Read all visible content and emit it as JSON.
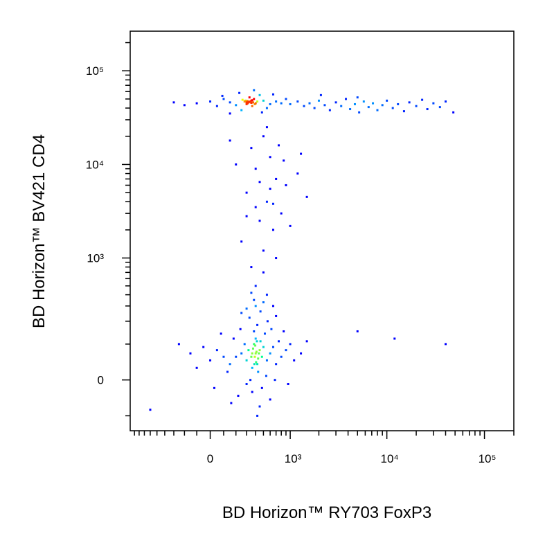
{
  "chart_data": {
    "type": "density",
    "x_label": "BD Horizon™ RY703 FoxP3",
    "y_label": "BD Horizon™ BV421 CD4",
    "xscale": "biexponential",
    "yscale": "biexponential",
    "xlim": [
      -1000,
      200000
    ],
    "ylim": [
      -160,
      265000
    ],
    "xticks": [
      0,
      {
        "value": 1000,
        "label": "10³"
      },
      {
        "value": 10000,
        "label": "10⁴"
      },
      {
        "value": 100000,
        "label": "10⁵"
      }
    ],
    "yticks": [
      0,
      {
        "value": 1000,
        "label": "10³"
      },
      {
        "value": 10000,
        "label": "10⁴"
      },
      {
        "value": 100000,
        "label": "10⁵"
      }
    ],
    "xminorticks": [
      -900,
      -800,
      -700,
      -600,
      -500,
      -400,
      -300,
      -200,
      -100,
      100,
      200,
      300,
      400,
      500,
      600,
      700,
      800,
      900,
      2000,
      3000,
      4000,
      5000,
      6000,
      7000,
      8000,
      9000,
      20000,
      30000,
      40000,
      50000,
      60000,
      70000,
      80000,
      90000,
      200000
    ],
    "yminorticks": [
      -100,
      100,
      200,
      300,
      400,
      500,
      600,
      700,
      800,
      900,
      2000,
      3000,
      4000,
      5000,
      6000,
      7000,
      8000,
      9000,
      20000,
      30000,
      40000,
      50000,
      60000,
      70000,
      80000,
      90000,
      200000
    ],
    "colormap": [
      "#0000ff",
      "#00b4ff",
      "#00ff90",
      "#f0ff00",
      "#ff0000"
    ],
    "x": [
      400,
      350,
      450,
      300,
      500,
      420,
      380,
      360,
      480,
      320,
      250,
      550,
      400,
      430,
      200,
      600,
      380,
      340,
      460,
      280,
      150,
      650,
      520,
      300,
      420,
      180,
      700,
      100,
      560,
      360,
      50,
      750,
      240,
      480,
      620,
      130,
      800,
      0,
      330,
      540,
      -50,
      900,
      220,
      460,
      680,
      80,
      1000,
      -100,
      400,
      600,
      380,
      300,
      500,
      -150,
      1100,
      160,
      700,
      450,
      250,
      850,
      -250,
      1300,
      350,
      550,
      30,
      950,
      400,
      650,
      420,
      1500,
      390,
      410,
      370,
      430,
      395,
      405,
      360,
      440,
      385,
      415,
      320,
      350,
      300,
      380,
      280,
      400,
      330,
      360,
      260,
      420,
      310,
      340,
      370,
      290,
      390,
      330,
      350,
      310,
      360,
      300,
      200,
      500,
      150,
      600,
      100,
      700,
      50,
      450,
      250,
      550,
      0,
      800,
      -100,
      900,
      230,
      480,
      -200,
      1000,
      380,
      150,
      1200,
      -300,
      650,
      90,
      1400,
      1600,
      1800,
      2000,
      2300,
      2600,
      3000,
      3400,
      3800,
      4200,
      4700,
      5200,
      5800,
      6500,
      7200,
      8000,
      9000,
      10000,
      11500,
      13000,
      15000,
      17000,
      20000,
      23000,
      26000,
      30000,
      35000,
      40000,
      48000,
      2100,
      5000,
      500,
      350,
      600,
      400,
      700,
      300,
      550,
      800,
      450,
      650,
      250,
      500,
      900,
      200,
      750,
      1200,
      600,
      400,
      1500,
      700,
      350,
      1000,
      550,
      150,
      850,
      450,
      1300,
      650,
      300,
      500,
      5000,
      12000,
      40000,
      -600
    ],
    "y": [
      70,
      60,
      80,
      50,
      90,
      40,
      100,
      30,
      60,
      80,
      70,
      50,
      120,
      20,
      60,
      70,
      150,
      0,
      110,
      100,
      40,
      90,
      140,
      -10,
      180,
      120,
      40,
      60,
      200,
      -30,
      80,
      110,
      160,
      -20,
      160,
      20,
      60,
      50,
      220,
      10,
      90,
      80,
      -40,
      260,
      0,
      140,
      100,
      30,
      300,
      -50,
      350,
      280,
      330,
      70,
      50,
      -60,
      230,
      -70,
      250,
      150,
      100,
      70,
      420,
      400,
      -20,
      -10,
      500,
      300,
      -100,
      110,
      60,
      75,
      85,
      55,
      95,
      45,
      70,
      70,
      40,
      110,
      46000,
      48000,
      44000,
      50000,
      47000,
      45000,
      52000,
      42000,
      49000,
      47000,
      45000,
      47000,
      46000,
      48000,
      44000,
      46500,
      45500,
      47500,
      48500,
      46000,
      43000,
      48000,
      46000,
      44000,
      50000,
      47000,
      42000,
      55000,
      38000,
      40000,
      47000,
      45000,
      45000,
      50000,
      58000,
      36000,
      43000,
      44000,
      62000,
      35000,
      47000,
      46000,
      56000,
      54000,
      42000,
      45000,
      40000,
      48000,
      43000,
      38000,
      46000,
      42000,
      50000,
      39000,
      44000,
      36000,
      47000,
      41000,
      45000,
      38000,
      43000,
      48000,
      40000,
      44000,
      37000,
      46000,
      42000,
      49000,
      39000,
      45000,
      41000,
      47000,
      36000,
      55000,
      52000,
      20000,
      15000,
      12000,
      9000,
      7000,
      5000,
      4000,
      3000,
      2500,
      2000,
      1500,
      1200,
      6000,
      10000,
      16000,
      8000,
      5500,
      3500,
      4500,
      1000,
      800,
      2200,
      25000,
      18000,
      11000,
      6500,
      13000,
      3800,
      2800,
      700,
      150,
      120,
      100,
      -80
    ]
  }
}
